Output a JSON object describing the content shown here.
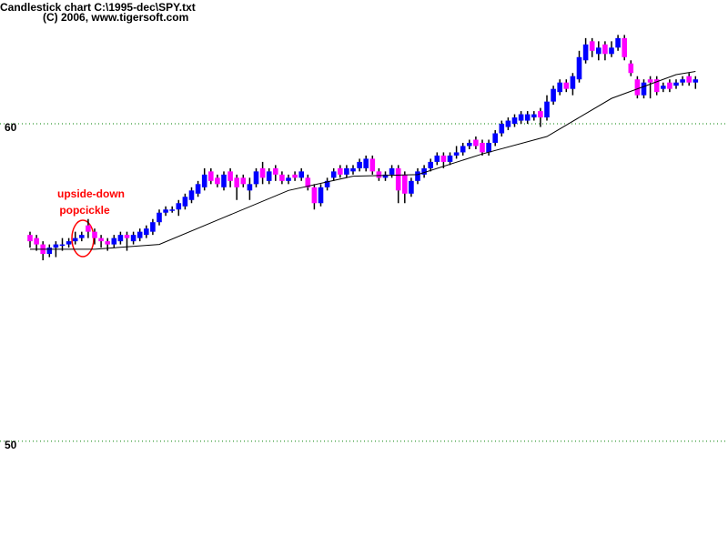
{
  "chart_data": {
    "type": "candlestick",
    "title": "Candlestick chart C:\\1995-dec\\SPY.txt",
    "subtitle": "(C) 2006, www.tigersoft.com",
    "annotation": [
      "upside-down",
      "popcickle"
    ],
    "up_color": "#0000ff",
    "down_color": "#ff00ff",
    "grid_color": "#008000",
    "ylim": [
      46.7,
      63.9
    ],
    "yticks": [
      50,
      60
    ],
    "grid": true,
    "open": [
      56.5,
      56.4,
      56.2,
      55.9,
      56.1,
      56.2,
      56.2,
      56.3,
      56.4,
      56.8,
      56.6,
      56.4,
      56.3,
      56.2,
      56.3,
      56.5,
      56.3,
      56.4,
      56.5,
      56.6,
      56.9,
      57.2,
      57.3,
      57.3,
      57.4,
      57.6,
      57.8,
      58.0,
      58.5,
      58.3,
      58.0,
      58.5,
      58.3,
      58.3,
      57.9,
      58.1,
      58.6,
      58.2,
      58.6,
      58.4,
      58.2,
      58.4,
      58.3,
      58.3,
      58.0,
      57.5,
      58.0,
      58.3,
      58.6,
      58.4,
      58.5,
      58.6,
      58.6,
      58.9,
      58.5,
      58.3,
      58.4,
      58.6,
      58.4,
      57.8,
      58.2,
      58.4,
      58.6,
      58.8,
      59.0,
      58.8,
      59.0,
      59.1,
      59.3,
      59.5,
      59.4,
      59.1,
      59.4,
      59.7,
      59.9,
      60.0,
      60.1,
      60.1,
      60.2,
      60.4,
      60.2,
      60.7,
      61.0,
      61.3,
      61.1,
      61.4,
      62.0,
      62.6,
      62.2,
      62.5,
      62.2,
      62.4,
      62.7,
      61.9,
      61.4,
      60.9,
      61.4,
      61.4,
      61.1,
      61.3,
      61.2,
      61.3,
      61.5,
      61.3
    ],
    "high": [
      56.6,
      56.5,
      56.3,
      56.2,
      56.3,
      56.4,
      56.4,
      56.6,
      56.6,
      57.0,
      56.7,
      56.5,
      56.4,
      56.5,
      56.6,
      56.6,
      56.6,
      56.7,
      56.8,
      57.0,
      57.3,
      57.4,
      57.4,
      57.6,
      57.8,
      58.0,
      58.2,
      58.6,
      58.6,
      58.4,
      58.5,
      58.6,
      58.4,
      58.4,
      58.3,
      58.6,
      58.8,
      58.6,
      58.7,
      58.5,
      58.4,
      58.5,
      58.6,
      58.4,
      58.1,
      58.1,
      58.3,
      58.6,
      58.7,
      58.7,
      58.7,
      58.9,
      59.0,
      59.0,
      58.6,
      58.5,
      58.7,
      58.7,
      58.5,
      58.3,
      58.6,
      58.7,
      58.9,
      59.1,
      59.1,
      59.1,
      59.3,
      59.4,
      59.5,
      59.6,
      59.5,
      59.5,
      59.8,
      60.1,
      60.2,
      60.3,
      60.4,
      60.4,
      60.4,
      60.5,
      60.9,
      61.2,
      61.4,
      61.4,
      61.6,
      62.3,
      62.7,
      62.7,
      62.6,
      62.6,
      62.6,
      62.8,
      62.8,
      62.0,
      61.5,
      61.4,
      61.5,
      61.5,
      61.3,
      61.4,
      61.4,
      61.5,
      61.6,
      61.5
    ],
    "low": [
      56.1,
      56.0,
      55.7,
      55.8,
      55.8,
      56.0,
      56.1,
      56.2,
      56.3,
      56.4,
      56.2,
      56.1,
      56.0,
      56.1,
      56.2,
      56.0,
      56.2,
      56.3,
      56.4,
      56.5,
      56.8,
      57.1,
      57.2,
      57.1,
      57.3,
      57.5,
      57.7,
      57.9,
      58.1,
      58.0,
      57.9,
      58.0,
      57.6,
      58.0,
      57.6,
      58.0,
      58.1,
      58.1,
      58.2,
      58.1,
      58.1,
      58.2,
      58.2,
      57.9,
      57.3,
      57.4,
      57.9,
      58.2,
      58.3,
      58.3,
      58.4,
      58.5,
      58.5,
      58.4,
      58.2,
      58.2,
      58.3,
      57.5,
      57.5,
      57.7,
      58.1,
      58.3,
      58.5,
      58.7,
      58.6,
      58.7,
      58.9,
      59.0,
      59.2,
      59.2,
      59.0,
      59.0,
      59.3,
      59.6,
      59.8,
      59.9,
      60.0,
      60.0,
      60.1,
      59.9,
      60.1,
      60.6,
      60.9,
      61.0,
      60.9,
      61.3,
      61.9,
      62.1,
      62.0,
      62.0,
      62.1,
      62.3,
      62.0,
      61.5,
      60.8,
      60.8,
      60.8,
      60.9,
      61.0,
      61.0,
      61.1,
      61.2,
      61.2,
      61.1
    ],
    "close": [
      56.3,
      56.2,
      55.9,
      56.1,
      56.2,
      56.2,
      56.3,
      56.4,
      56.5,
      56.6,
      56.4,
      56.3,
      56.2,
      56.4,
      56.5,
      56.4,
      56.5,
      56.6,
      56.7,
      56.9,
      57.2,
      57.3,
      57.3,
      57.5,
      57.7,
      57.9,
      58.1,
      58.4,
      58.2,
      58.1,
      58.4,
      58.2,
      58.0,
      58.1,
      58.1,
      58.5,
      58.3,
      58.5,
      58.4,
      58.2,
      58.3,
      58.3,
      58.5,
      58.0,
      57.5,
      58.0,
      58.2,
      58.5,
      58.4,
      58.6,
      58.6,
      58.8,
      58.9,
      58.5,
      58.3,
      58.4,
      58.6,
      57.9,
      57.8,
      58.2,
      58.5,
      58.6,
      58.8,
      59.0,
      58.8,
      59.0,
      59.1,
      59.3,
      59.4,
      59.3,
      59.1,
      59.4,
      59.7,
      60.0,
      60.1,
      60.2,
      60.3,
      60.3,
      60.3,
      60.2,
      60.7,
      61.1,
      61.3,
      61.1,
      61.5,
      62.1,
      62.5,
      62.3,
      62.4,
      62.2,
      62.4,
      62.7,
      62.1,
      61.6,
      60.9,
      61.3,
      61.3,
      61.0,
      61.2,
      61.1,
      61.3,
      61.4,
      61.3,
      61.4
    ],
    "moving_average": {
      "x": [
        0,
        10,
        20,
        30,
        40,
        50,
        60,
        70,
        80,
        90,
        100,
        103
      ],
      "values": [
        56.05,
        56.05,
        56.2,
        57.05,
        57.9,
        58.35,
        58.4,
        59.05,
        59.6,
        60.8,
        61.55,
        61.65
      ]
    }
  }
}
